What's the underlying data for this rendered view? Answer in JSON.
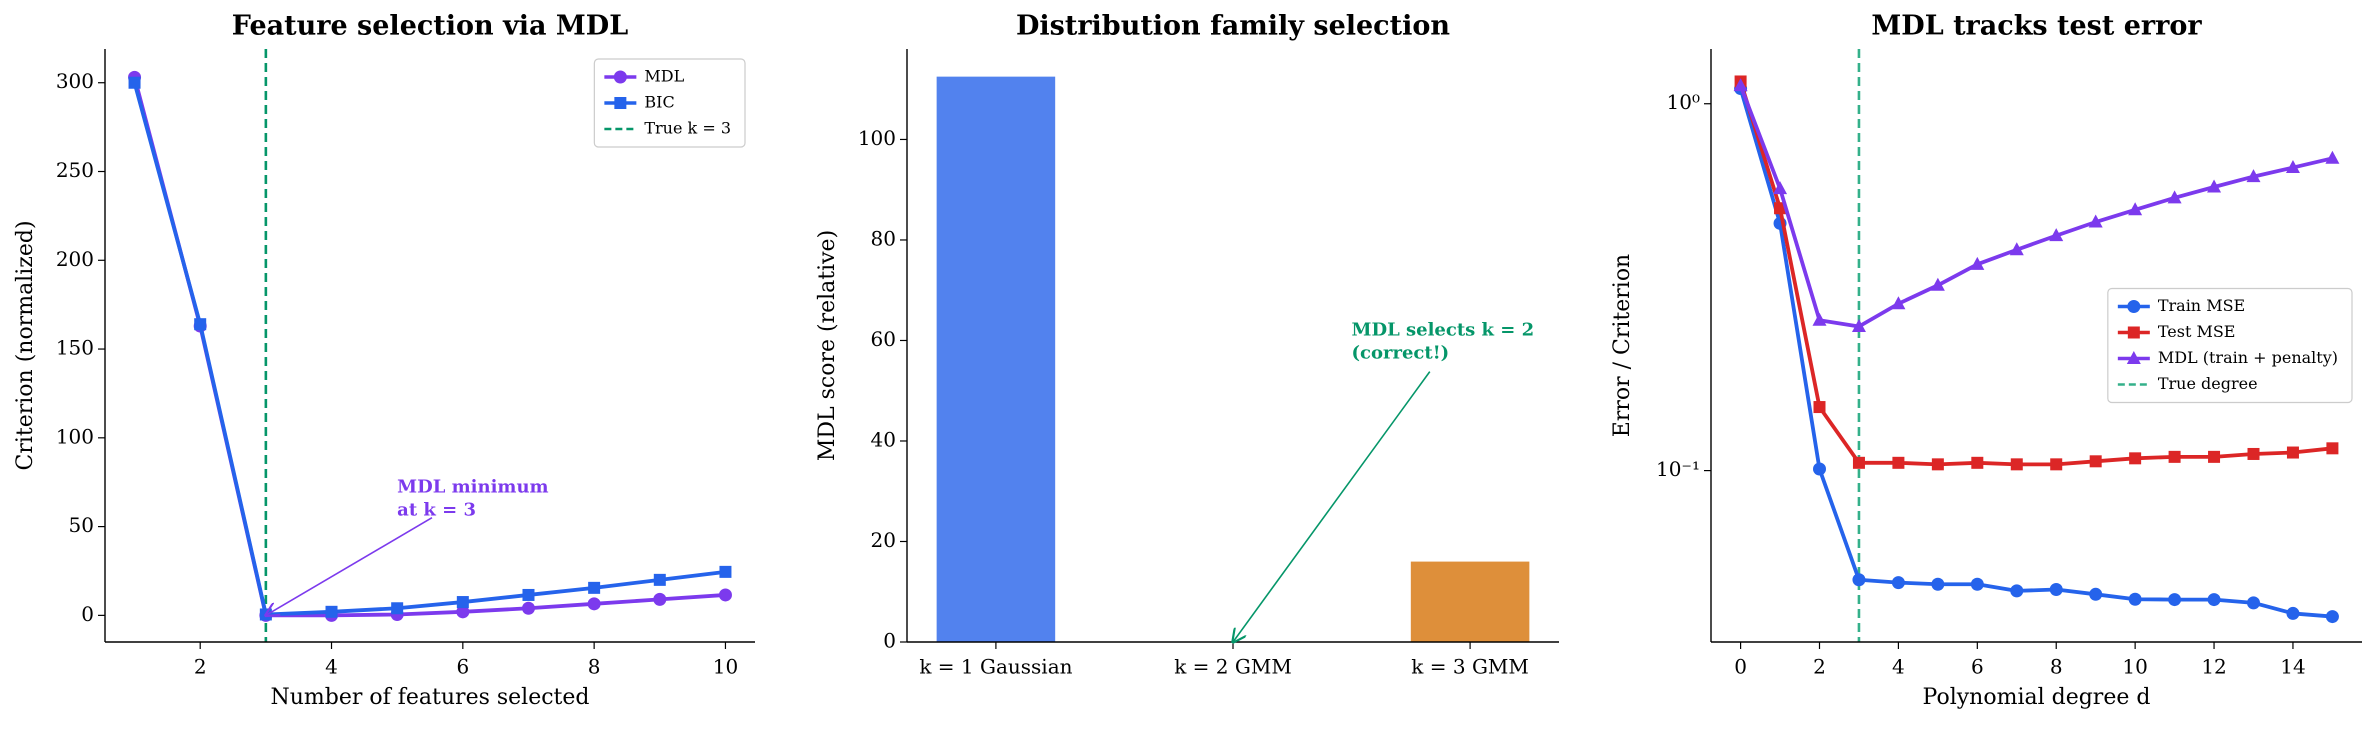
{
  "chart_data": [
    {
      "type": "line",
      "title": "Feature selection via MDL",
      "xlabel": "Number of features selected",
      "ylabel": "Criterion (normalized)",
      "x": [
        1,
        2,
        3,
        4,
        5,
        6,
        7,
        8,
        9,
        10
      ],
      "series": [
        {
          "name": "MDL",
          "color": "#7c3aed",
          "marker": "circle",
          "values": [
            303,
            163,
            0,
            0,
            0.5,
            2,
            4,
            6.5,
            9,
            11.5
          ]
        },
        {
          "name": "BIC",
          "color": "#2563eb",
          "marker": "square",
          "values": [
            300,
            164,
            0.5,
            2,
            4,
            7.5,
            11.5,
            15.5,
            20,
            24.5
          ]
        }
      ],
      "vlines": [
        {
          "x": 3,
          "label": "True k = 3",
          "color": "#059669"
        }
      ],
      "xlim": [
        0.55,
        10.45
      ],
      "ylim": [
        -15,
        319
      ],
      "xticks": [
        2,
        4,
        6,
        8,
        10
      ],
      "yticks": [
        0,
        50,
        100,
        150,
        200,
        250,
        300
      ],
      "legend": "upper right",
      "annotations": [
        {
          "text": [
            "MDL minimum",
            "at k = 3"
          ],
          "color": "#7c3aed"
        }
      ]
    },
    {
      "type": "bar",
      "title": "Distribution family selection",
      "ylabel": "MDL score (relative)",
      "categories": [
        "k = 1 Gaussian",
        "k = 2 GMM",
        "k = 3 GMM"
      ],
      "values": [
        112.5,
        0,
        16
      ],
      "colors": [
        "#5282ee",
        "#059669",
        "#de8f3a"
      ],
      "ylim": [
        0,
        118
      ],
      "yticks": [
        0,
        20,
        40,
        60,
        80,
        100
      ],
      "annotations": [
        {
          "text": [
            "MDL selects k = 2",
            "(correct!)"
          ],
          "color": "#059669"
        }
      ]
    },
    {
      "type": "line",
      "title": "MDL tracks test error",
      "xlabel": "Polynomial degree d",
      "ylabel": "Error / Criterion",
      "log_y": true,
      "x": [
        0,
        1,
        2,
        3,
        4,
        5,
        6,
        7,
        8,
        9,
        10,
        11,
        12,
        13,
        14,
        15
      ],
      "series": [
        {
          "name": "Train MSE",
          "color": "#2563eb",
          "marker": "circle",
          "values": [
            1.1,
            0.472,
            0.101,
            0.0504,
            0.0495,
            0.049,
            0.049,
            0.047,
            0.0474,
            0.046,
            0.0446,
            0.0445,
            0.0445,
            0.0436,
            0.0408,
            0.04
          ]
        },
        {
          "name": "Test MSE",
          "color": "#dc2626",
          "marker": "square",
          "values": [
            1.15,
            0.519,
            0.149,
            0.105,
            0.105,
            0.104,
            0.105,
            0.104,
            0.104,
            0.106,
            0.108,
            0.109,
            0.109,
            0.111,
            0.112,
            0.115
          ]
        },
        {
          "name": "MDL (train + penalty)",
          "color": "#7c3aed",
          "marker": "triangle",
          "values": [
            1.12,
            0.587,
            0.257,
            0.247,
            0.285,
            0.32,
            0.365,
            0.4,
            0.437,
            0.476,
            0.514,
            0.554,
            0.593,
            0.633,
            0.67,
            0.71
          ]
        }
      ],
      "vlines": [
        {
          "x": 3,
          "label": "True degree",
          "color": "#34b08a"
        }
      ],
      "xlim": [
        -0.75,
        15.75
      ],
      "ylim": [
        0.0341,
        1.41
      ],
      "xticks": [
        0,
        2,
        4,
        6,
        8,
        10,
        12,
        14
      ],
      "yticks": [
        {
          "value": 0.1,
          "label": "10⁻¹"
        },
        {
          "value": 1,
          "label": "10⁰"
        }
      ],
      "legend": "center right"
    }
  ]
}
